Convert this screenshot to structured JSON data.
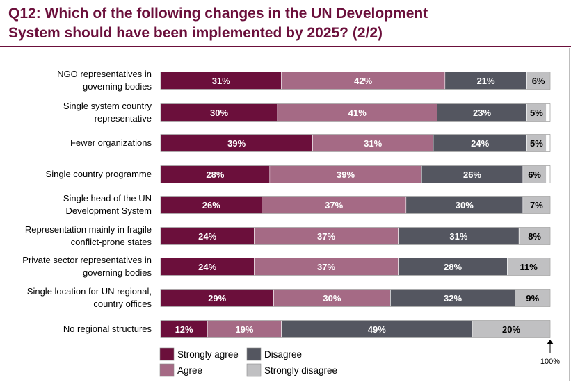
{
  "title": {
    "line1": "Q12: Which of the following changes in the UN Development",
    "line2": "System should have been implemented by 2025? (2/2)"
  },
  "chart_data": {
    "type": "bar",
    "orientation": "horizontal",
    "stacked": true,
    "title": "Q12: Which of the following changes in the UN Development System should have been implemented by 2025? (2/2)",
    "xlim": [
      0,
      100
    ],
    "axis_end_label": "100%",
    "categories": [
      [
        "NGO representatives in",
        "governing bodies"
      ],
      [
        "Single system country",
        "representative"
      ],
      [
        "Fewer organizations"
      ],
      [
        "Single country programme"
      ],
      [
        "Single head of the UN",
        "Development System"
      ],
      [
        "Representation mainly in fragile",
        "conflict-prone states"
      ],
      [
        "Private sector representatives in",
        "governing bodies"
      ],
      [
        "Single location for UN regional,",
        "country offices"
      ],
      [
        "No regional structures"
      ]
    ],
    "series": [
      {
        "name": "Strongly agree",
        "color": "#6b0f3b",
        "text_color": "#ffffff",
        "values": [
          31,
          30,
          39,
          28,
          26,
          24,
          24,
          29,
          12
        ]
      },
      {
        "name": "Agree",
        "color": "#a56a85",
        "text_color": "#ffffff",
        "values": [
          42,
          41,
          31,
          39,
          37,
          37,
          37,
          30,
          19
        ]
      },
      {
        "name": "Disagree",
        "color": "#545660",
        "text_color": "#ffffff",
        "values": [
          21,
          23,
          24,
          26,
          30,
          31,
          28,
          32,
          49
        ]
      },
      {
        "name": "Strongly disagree",
        "color": "#c0c0c2",
        "text_color": "#000000",
        "values": [
          6,
          5,
          5,
          6,
          7,
          8,
          11,
          9,
          20
        ]
      }
    ],
    "legend": {
      "position": "bottom",
      "order": [
        "Strongly agree",
        "Disagree",
        "Agree",
        "Strongly disagree"
      ]
    },
    "grid": false
  }
}
